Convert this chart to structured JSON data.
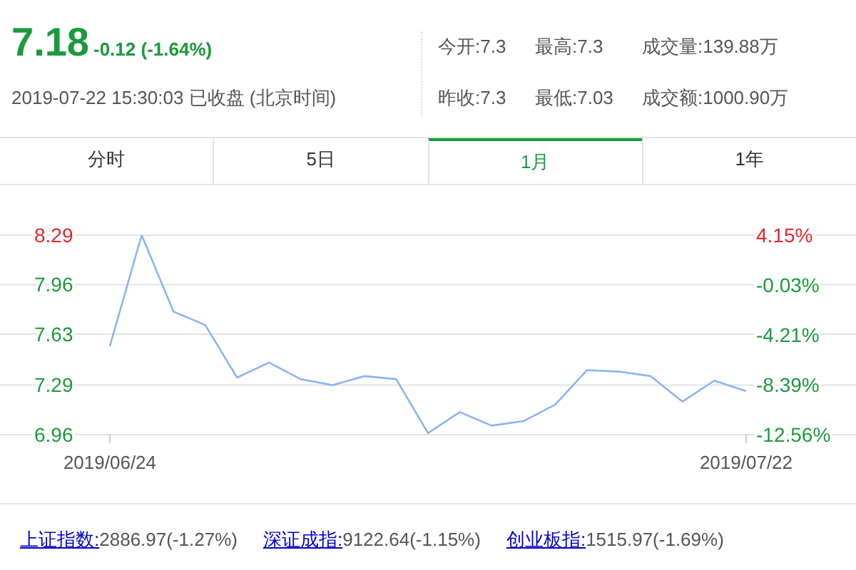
{
  "chart_data": {
    "type": "line",
    "title": "7.18",
    "subtitle": "-0.12 (-1.64%)",
    "annotations": [
      "2019-07-22 15:30:03 已收盘 (北京时间)",
      "今开:7.3",
      "最高:7.3",
      "成交量:139.88万",
      "昨收:7.3",
      "最低:7.03",
      "成交额:1000.90万",
      "分时",
      "5日",
      "1月",
      "1年",
      "上证指数:",
      "2886.97(-1.27%)",
      "深证成指:",
      "9122.64(-1.15%)",
      "创业板指:",
      "1515.97(-1.69%)"
    ],
    "categories": [
      "2019/06/24",
      null,
      null,
      null,
      null,
      null,
      null,
      null,
      null,
      null,
      null,
      null,
      null,
      null,
      null,
      null,
      null,
      null,
      null,
      null,
      "2019/07/22"
    ],
    "series": [
      {
        "color": "#8cb4f0",
        "values": [
          7.55,
          8.29,
          7.78,
          7.69,
          7.34,
          7.44,
          7.33,
          7.29,
          7.35,
          7.33,
          6.97,
          7.11,
          7.02,
          7.05,
          7.16,
          7.39,
          7.38,
          7.35,
          7.18,
          7.32,
          7.25
        ]
      }
    ],
    "ylim": [
      6.96,
      8.29
    ],
    "yticks": [
      6.96,
      7.29,
      7.63,
      7.96,
      8.29
    ],
    "y2lim": [
      -12.56,
      4.15
    ],
    "y2ticks": [
      {
        "value": -12.56,
        "label": "-12.56%"
      },
      {
        "value": -8.39,
        "label": "-8.39%"
      },
      {
        "value": -4.21,
        "label": "-4.21%"
      },
      {
        "value": -0.03,
        "label": "-0.03%"
      },
      {
        "value": 4.15,
        "label": "4.15%"
      }
    ],
    "grid": "y",
    "legend": false,
    "marker": "none"
  }
}
